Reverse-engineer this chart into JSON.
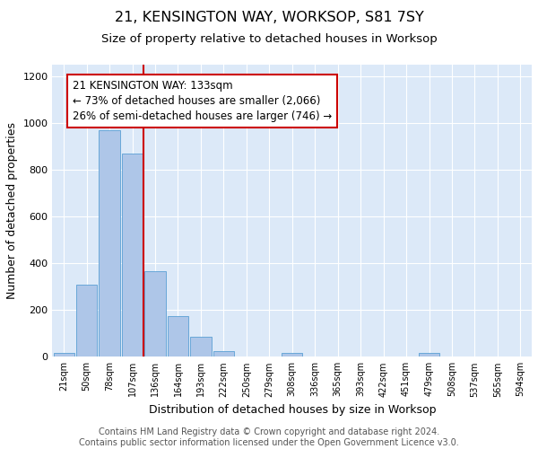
{
  "title": "21, KENSINGTON WAY, WORKSOP, S81 7SY",
  "subtitle": "Size of property relative to detached houses in Worksop",
  "xlabel": "Distribution of detached houses by size in Worksop",
  "ylabel": "Number of detached properties",
  "bin_labels": [
    "21sqm",
    "50sqm",
    "78sqm",
    "107sqm",
    "136sqm",
    "164sqm",
    "193sqm",
    "222sqm",
    "250sqm",
    "279sqm",
    "308sqm",
    "336sqm",
    "365sqm",
    "393sqm",
    "422sqm",
    "451sqm",
    "479sqm",
    "508sqm",
    "537sqm",
    "565sqm",
    "594sqm"
  ],
  "bar_values": [
    15,
    310,
    970,
    870,
    365,
    175,
    85,
    25,
    0,
    0,
    15,
    0,
    0,
    0,
    0,
    0,
    15,
    0,
    0,
    0,
    0
  ],
  "bar_color": "#aec6e8",
  "bar_edge_color": "#5a9fd4",
  "vline_color": "#cc0000",
  "annotation_text": "21 KENSINGTON WAY: 133sqm\n← 73% of detached houses are smaller (2,066)\n26% of semi-detached houses are larger (746) →",
  "annotation_box_color": "#ffffff",
  "annotation_box_edge_color": "#cc0000",
  "ylim": [
    0,
    1250
  ],
  "yticks": [
    0,
    200,
    400,
    600,
    800,
    1000,
    1200
  ],
  "background_color": "#dce9f8",
  "footer_text": "Contains HM Land Registry data © Crown copyright and database right 2024.\nContains public sector information licensed under the Open Government Licence v3.0.",
  "title_fontsize": 11.5,
  "subtitle_fontsize": 9.5,
  "annotation_fontsize": 8.5,
  "ylabel_fontsize": 9,
  "xlabel_fontsize": 9,
  "tick_fontsize": 7,
  "ytick_fontsize": 8,
  "footer_fontsize": 7
}
